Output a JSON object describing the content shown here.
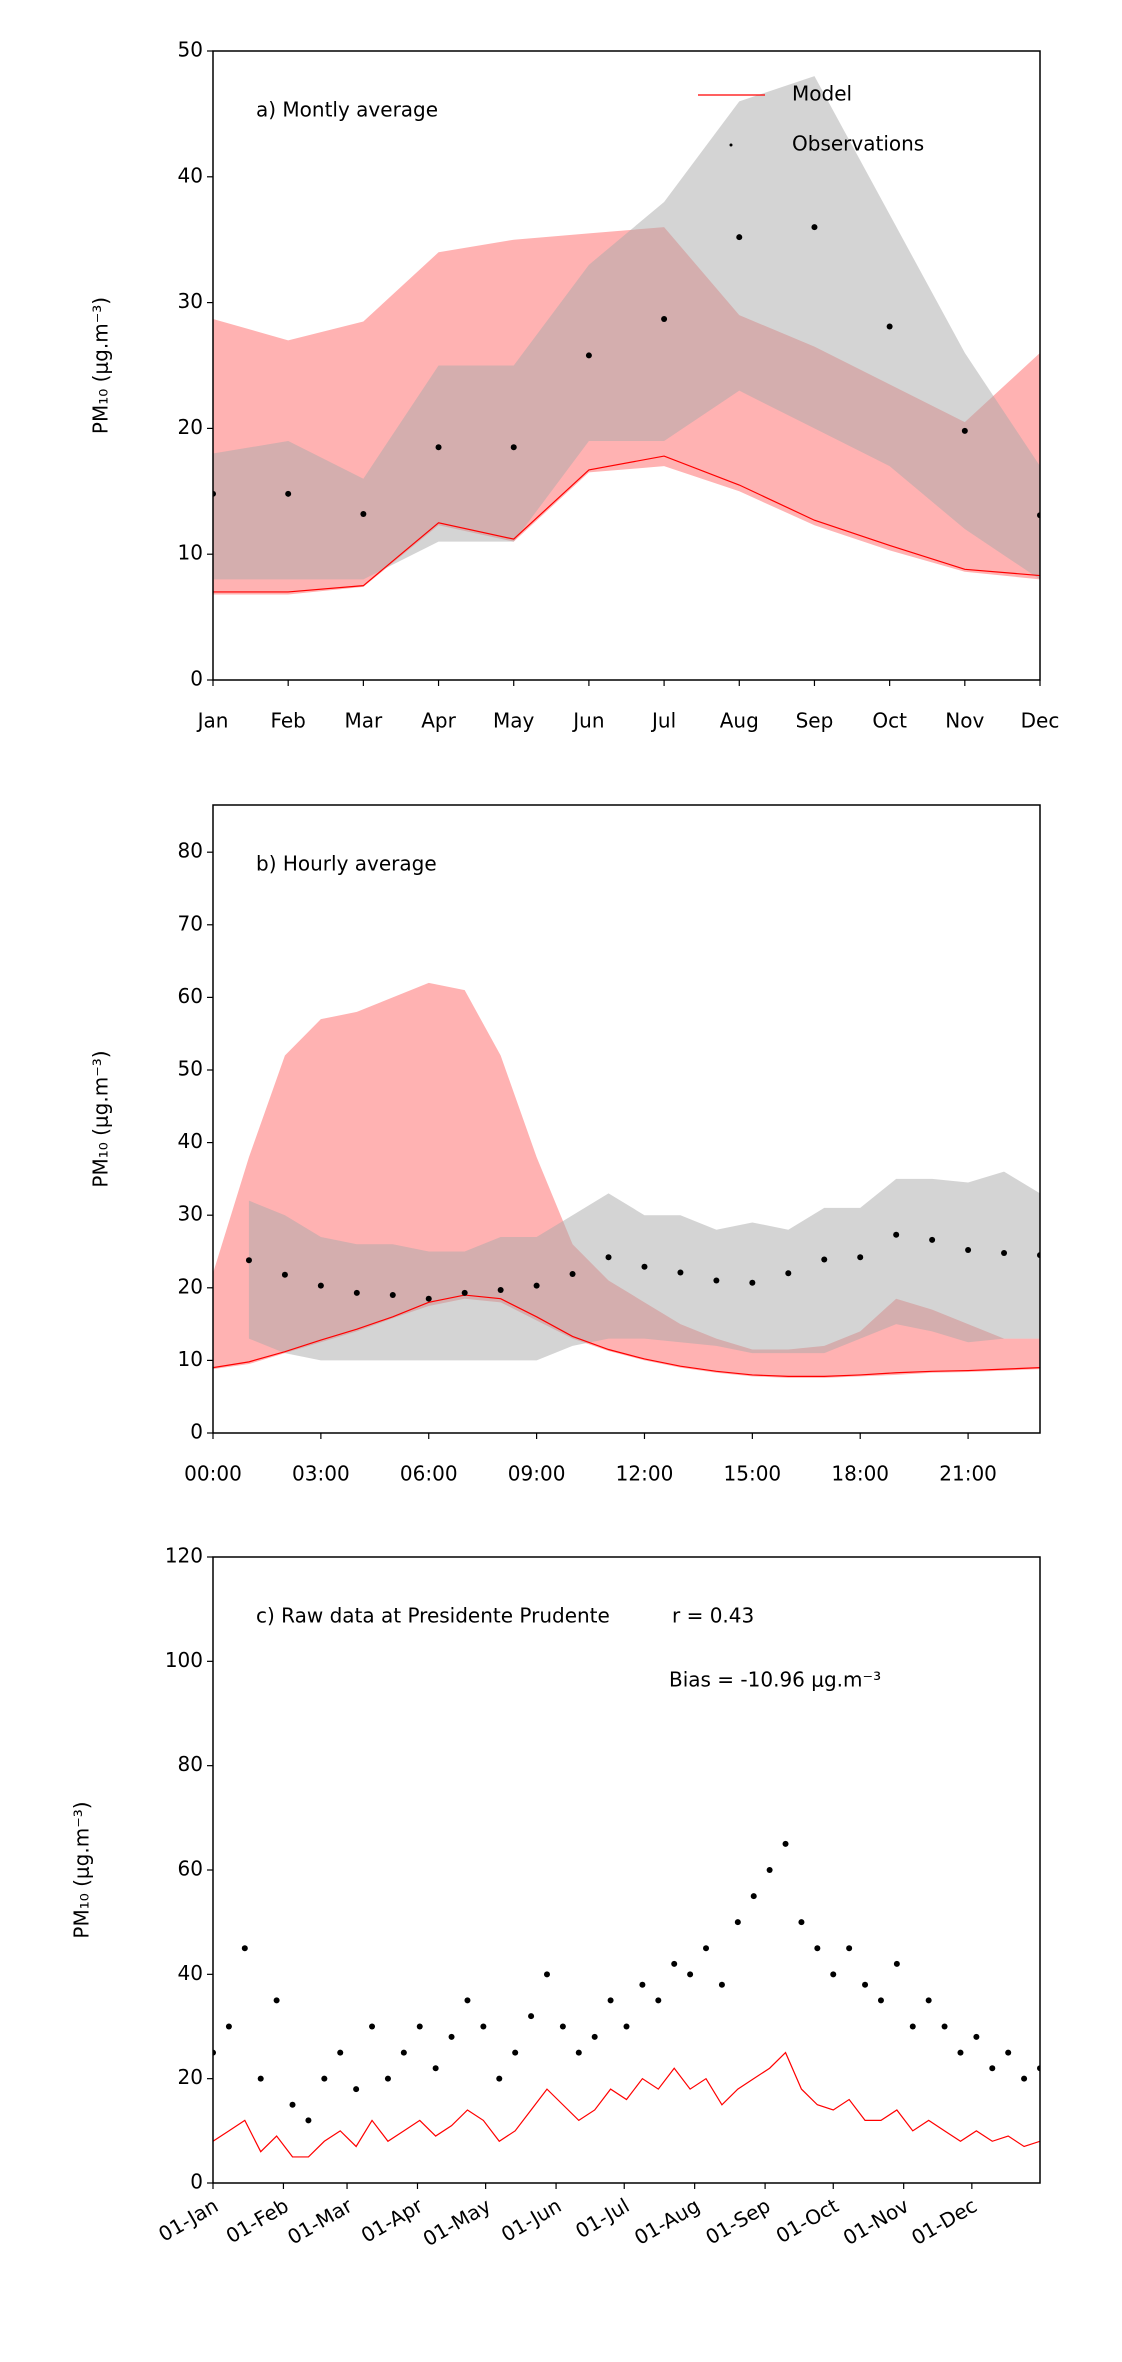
{
  "chart_data": [
    {
      "type": "line",
      "annotation": "a) Montly average",
      "ylabel": "PM₁₀ (μg.m⁻³)",
      "legend": "upper right",
      "categories": [
        "Jan",
        "Feb",
        "Mar",
        "Apr",
        "May",
        "Jun",
        "Jul",
        "Aug",
        "Sep",
        "Oct",
        "Nov",
        "Dec"
      ],
      "ylim": [
        0,
        50
      ],
      "yticks": [
        0,
        10,
        20,
        30,
        40,
        50
      ],
      "bands": [
        {
          "color": "#ff0000",
          "opacity": 0.3,
          "lower": [
            6.8,
            6.8,
            7.4,
            12.3,
            11,
            16.5,
            17,
            15,
            12.3,
            10.3,
            8.6,
            8.0
          ],
          "upper": [
            28.7,
            27,
            28.5,
            34,
            35,
            35.5,
            36,
            29,
            26.5,
            23.5,
            20.5,
            26
          ]
        },
        {
          "color": "#aaaaaa",
          "opacity": 0.5,
          "lower": [
            8,
            8,
            8,
            11,
            11,
            19,
            19,
            23,
            20,
            17,
            12,
            8
          ],
          "upper": [
            18,
            19,
            16,
            25,
            25,
            33,
            38,
            46,
            48,
            37,
            26,
            17
          ]
        }
      ],
      "series": [
        {
          "name": "Model",
          "color": "#ff0000",
          "style": "line",
          "values": [
            7,
            7,
            7.5,
            12.5,
            11.2,
            16.7,
            17.8,
            15.5,
            12.7,
            10.7,
            8.8,
            8.3
          ]
        },
        {
          "name": "Observations",
          "color": "#000000",
          "style": "dots",
          "values": [
            14.8,
            14.8,
            13.2,
            18.5,
            18.5,
            25.8,
            28.7,
            35.2,
            36,
            28.1,
            19.8,
            13.1
          ]
        }
      ]
    },
    {
      "type": "line",
      "annotation": "b) Hourly average",
      "ylabel": "PM₁₀ (μg.m⁻³)",
      "xlim": [
        0,
        23
      ],
      "xticks": [
        {
          "value": 0,
          "label": "00:00"
        },
        {
          "value": 3,
          "label": "03:00"
        },
        {
          "value": 6,
          "label": "06:00"
        },
        {
          "value": 9,
          "label": "09:00"
        },
        {
          "value": 12,
          "label": "12:00"
        },
        {
          "value": 15,
          "label": "15:00"
        },
        {
          "value": 18,
          "label": "18:00"
        },
        {
          "value": 21,
          "label": "21:00"
        }
      ],
      "ylim": [
        0,
        86.5
      ],
      "yticks": [
        0,
        10,
        20,
        30,
        40,
        50,
        60,
        70,
        80
      ],
      "bands": [
        {
          "color": "#ff0000",
          "opacity": 0.3,
          "x": [
            0,
            1,
            2,
            3,
            4,
            5,
            6,
            7,
            8,
            9,
            10,
            11,
            12,
            13,
            14,
            15,
            16,
            17,
            18,
            19,
            20,
            21,
            22,
            23
          ],
          "lower": [
            8.8,
            9.5,
            11,
            12.5,
            14,
            15.8,
            17.5,
            18.5,
            18,
            15.5,
            13,
            11.3,
            10,
            9,
            8.3,
            7.8,
            7.6,
            7.6,
            7.8,
            8,
            8.3,
            8.4,
            8.6,
            8.8
          ],
          "upper": [
            22,
            38,
            52,
            57,
            58,
            60,
            62,
            61,
            52,
            38,
            26,
            21,
            18,
            15,
            13,
            11.5,
            11.5,
            12,
            14,
            18.5,
            17,
            15,
            13,
            13
          ]
        },
        {
          "color": "#aaaaaa",
          "opacity": 0.5,
          "x": [
            1,
            2,
            3,
            4,
            5,
            6,
            7,
            8,
            9,
            10,
            11,
            12,
            13,
            14,
            15,
            16,
            17,
            18,
            19,
            20,
            21,
            22,
            23
          ],
          "lower": [
            13,
            11,
            10,
            10,
            10,
            10,
            10,
            10,
            10,
            12,
            13,
            13,
            12.5,
            12,
            11,
            11,
            11,
            13,
            15,
            14,
            12.5,
            13,
            13
          ],
          "upper": [
            32,
            30,
            27,
            26,
            26,
            25,
            25,
            27,
            27,
            30,
            33,
            30,
            30,
            28,
            29,
            28,
            31,
            31,
            35,
            35,
            34.5,
            36,
            33
          ]
        }
      ],
      "series": [
        {
          "color": "#ff0000",
          "style": "line",
          "x": [
            0,
            1,
            2,
            3,
            4,
            5,
            6,
            7,
            8,
            9,
            10,
            11,
            12,
            13,
            14,
            15,
            16,
            17,
            18,
            19,
            20,
            21,
            22,
            23
          ],
          "values": [
            9,
            9.8,
            11.2,
            12.8,
            14.3,
            16,
            18,
            19,
            18.5,
            16,
            13.3,
            11.5,
            10.2,
            9.2,
            8.5,
            8,
            7.8,
            7.8,
            8,
            8.3,
            8.5,
            8.6,
            8.8,
            9
          ]
        },
        {
          "color": "#000000",
          "style": "dots",
          "x": [
            1,
            2,
            3,
            4,
            5,
            6,
            7,
            8,
            9,
            10,
            11,
            12,
            13,
            14,
            15,
            16,
            17,
            18,
            19,
            20,
            21,
            22,
            23
          ],
          "values": [
            23.8,
            21.8,
            20.3,
            19.3,
            19,
            18.5,
            19.3,
            19.7,
            20.3,
            21.9,
            24.2,
            22.9,
            22.1,
            21,
            20.7,
            22,
            23.9,
            24.2,
            27.3,
            26.6,
            25.2,
            24.8,
            24.5
          ]
        }
      ]
    },
    {
      "type": "line",
      "annotations": [
        "c) Raw data at Presidente Prudente",
        "r = 0.43",
        "Bias = -10.96 μg.m⁻³"
      ],
      "ylabel": "PM₁₀ (μg.m⁻³)",
      "xlim": [
        0,
        364
      ],
      "xticks": [
        {
          "value": 0,
          "label": "01-Jan"
        },
        {
          "value": 31,
          "label": "01-Feb"
        },
        {
          "value": 59,
          "label": "01-Mar"
        },
        {
          "value": 90,
          "label": "01-Apr"
        },
        {
          "value": 120,
          "label": "01-May"
        },
        {
          "value": 151,
          "label": "01-Jun"
        },
        {
          "value": 181,
          "label": "01-Jul"
        },
        {
          "value": 212,
          "label": "01-Aug"
        },
        {
          "value": 243,
          "label": "01-Sep"
        },
        {
          "value": 273,
          "label": "01-Oct"
        },
        {
          "value": 304,
          "label": "01-Nov"
        },
        {
          "value": 334,
          "label": "01-Dec"
        }
      ],
      "ylim": [
        0,
        120
      ],
      "yticks": [
        0,
        20,
        40,
        60,
        80,
        100,
        120
      ],
      "series": [
        {
          "color": "#ff0000",
          "style": "line",
          "x": [
            0,
            7,
            14,
            21,
            28,
            35,
            42,
            49,
            56,
            63,
            70,
            77,
            84,
            91,
            98,
            105,
            112,
            119,
            126,
            133,
            140,
            147,
            154,
            161,
            168,
            175,
            182,
            189,
            196,
            203,
            210,
            217,
            224,
            231,
            238,
            245,
            252,
            259,
            266,
            273,
            280,
            287,
            294,
            301,
            308,
            315,
            322,
            329,
            336,
            343,
            350,
            357,
            364
          ],
          "values": [
            8,
            10,
            12,
            6,
            9,
            5,
            5,
            8,
            10,
            7,
            12,
            8,
            10,
            12,
            9,
            11,
            14,
            12,
            8,
            10,
            14,
            18,
            15,
            12,
            14,
            18,
            16,
            20,
            18,
            22,
            18,
            20,
            15,
            18,
            20,
            22,
            25,
            18,
            15,
            14,
            16,
            12,
            12,
            14,
            10,
            12,
            10,
            8,
            10,
            8,
            9,
            7,
            8
          ]
        },
        {
          "color": "#000000",
          "style": "dots",
          "x": [
            0,
            7,
            14,
            21,
            28,
            35,
            42,
            49,
            56,
            63,
            70,
            77,
            84,
            91,
            98,
            105,
            112,
            119,
            126,
            133,
            140,
            147,
            154,
            161,
            168,
            175,
            182,
            189,
            196,
            203,
            210,
            217,
            224,
            231,
            238,
            245,
            252,
            259,
            266,
            273,
            280,
            287,
            294,
            301,
            308,
            315,
            322,
            329,
            336,
            343,
            350,
            357,
            364
          ],
          "values": [
            25,
            30,
            45,
            20,
            35,
            15,
            12,
            20,
            25,
            18,
            30,
            20,
            25,
            30,
            22,
            28,
            35,
            30,
            20,
            25,
            32,
            40,
            30,
            25,
            28,
            35,
            30,
            38,
            35,
            42,
            40,
            45,
            38,
            50,
            55,
            60,
            65,
            50,
            45,
            40,
            45,
            38,
            35,
            42,
            30,
            35,
            30,
            25,
            28,
            22,
            25,
            20,
            22
          ]
        }
      ]
    }
  ]
}
